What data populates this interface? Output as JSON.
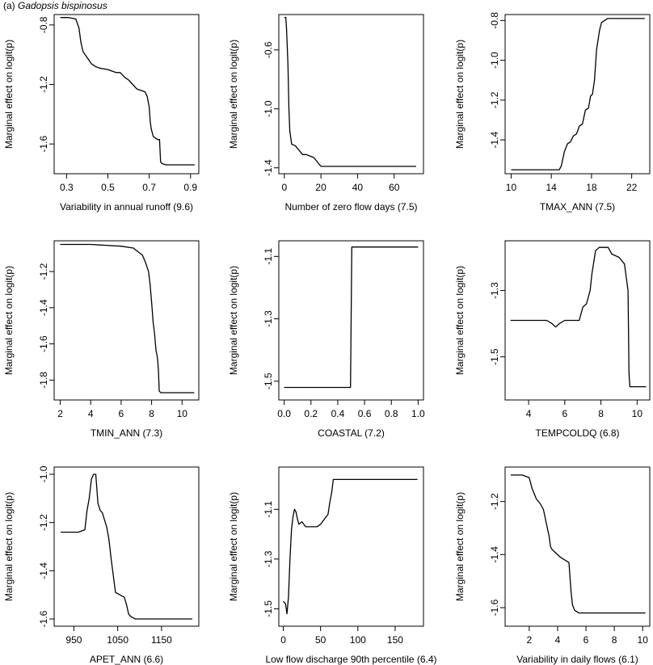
{
  "figure": {
    "panel_label": "(a)",
    "species": "Gadopsis bispinosus"
  },
  "chart_data": [
    {
      "type": "line",
      "xlabel": "Variability in annual runoff (9.6)",
      "ylabel": "Marginal effect on logit(p)",
      "xlim": [
        0.24,
        0.94
      ],
      "ylim": [
        -1.8,
        -0.73
      ],
      "xticks": [
        "0.3",
        "0.5",
        "0.7",
        "0.9"
      ],
      "yticks": [
        "-1.6",
        "-1.2",
        "-0.8"
      ],
      "x": [
        0.27,
        0.31,
        0.345,
        0.36,
        0.37,
        0.38,
        0.39,
        0.4,
        0.42,
        0.44,
        0.46,
        0.5,
        0.52,
        0.54,
        0.56,
        0.58,
        0.6,
        0.62,
        0.64,
        0.66,
        0.68,
        0.69,
        0.7,
        0.705,
        0.71,
        0.72,
        0.73,
        0.74,
        0.75,
        0.755,
        0.76,
        0.78,
        0.8,
        0.92
      ],
      "y": [
        -0.75,
        -0.75,
        -0.76,
        -0.82,
        -0.92,
        -0.98,
        -1.0,
        -1.02,
        -1.06,
        -1.08,
        -1.09,
        -1.1,
        -1.11,
        -1.12,
        -1.12,
        -1.15,
        -1.17,
        -1.2,
        -1.23,
        -1.24,
        -1.25,
        -1.28,
        -1.35,
        -1.45,
        -1.5,
        -1.55,
        -1.56,
        -1.57,
        -1.57,
        -1.72,
        -1.73,
        -1.74,
        -1.74,
        -1.74
      ]
    },
    {
      "type": "line",
      "xlabel": "Number of zero flow days (7.5)",
      "ylabel": "Marginal effect on logit(p)",
      "xlim": [
        -3,
        76
      ],
      "ylim": [
        -1.44,
        -0.36
      ],
      "xticks": [
        "0",
        "20",
        "40",
        "60"
      ],
      "yticks": [
        "-1.4",
        "-1.0",
        "-0.6"
      ],
      "x": [
        0,
        0.8,
        1.2,
        2,
        2.5,
        3,
        4,
        6,
        8,
        10,
        12,
        14,
        16,
        18,
        20,
        25,
        30,
        40,
        50,
        60,
        72
      ],
      "y": [
        -0.38,
        -0.38,
        -0.45,
        -0.7,
        -1.0,
        -1.15,
        -1.24,
        -1.25,
        -1.28,
        -1.31,
        -1.31,
        -1.32,
        -1.33,
        -1.36,
        -1.39,
        -1.39,
        -1.39,
        -1.39,
        -1.39,
        -1.39,
        -1.39
      ]
    },
    {
      "type": "line",
      "xlabel": "TMAX_ANN (7.5)",
      "ylabel": "Marginal effect on logit(p)",
      "xlim": [
        9.4,
        23.8
      ],
      "ylim": [
        -1.57,
        -0.77
      ],
      "xticks": [
        "10",
        "14",
        "18",
        "22"
      ],
      "yticks": [
        "-1.4",
        "-1.2",
        "-1.0",
        "-0.8"
      ],
      "x": [
        10,
        12,
        14,
        14.8,
        15.0,
        15.3,
        15.6,
        15.9,
        16.2,
        16.5,
        16.8,
        17.1,
        17.4,
        17.7,
        17.9,
        18.1,
        18.3,
        18.5,
        18.8,
        19.0,
        19.3,
        19.6,
        20,
        22,
        23.3
      ],
      "y": [
        -1.55,
        -1.55,
        -1.55,
        -1.55,
        -1.53,
        -1.46,
        -1.42,
        -1.41,
        -1.38,
        -1.37,
        -1.33,
        -1.32,
        -1.25,
        -1.24,
        -1.18,
        -1.17,
        -1.1,
        -0.95,
        -0.85,
        -0.81,
        -0.8,
        -0.79,
        -0.79,
        -0.79,
        -0.79
      ]
    },
    {
      "type": "line",
      "xlabel": "TMIN_ANN (7.3)",
      "ylabel": "Marginal effect on logit(p)",
      "xlim": [
        1.6,
        11.1
      ],
      "ylim": [
        -1.91,
        -1.03
      ],
      "xticks": [
        "2",
        "4",
        "6",
        "8",
        "10"
      ],
      "yticks": [
        "-1.8",
        "-1.6",
        "-1.4",
        "-1.2"
      ],
      "x": [
        2,
        4,
        6,
        6.8,
        7.1,
        7.4,
        7.6,
        7.8,
        7.9,
        8.0,
        8.1,
        8.2,
        8.25,
        8.3,
        8.35,
        8.4,
        8.45,
        8.5,
        8.6,
        9,
        10,
        10.8
      ],
      "y": [
        -1.05,
        -1.05,
        -1.06,
        -1.07,
        -1.09,
        -1.11,
        -1.15,
        -1.2,
        -1.27,
        -1.37,
        -1.48,
        -1.55,
        -1.6,
        -1.64,
        -1.66,
        -1.69,
        -1.75,
        -1.86,
        -1.87,
        -1.87,
        -1.87,
        -1.87
      ]
    },
    {
      "type": "line",
      "xlabel": "COASTAL (7.2)",
      "ylabel": "Marginal effect on logit(p)",
      "xlim": [
        -0.04,
        1.04
      ],
      "ylim": [
        -1.56,
        -1.05
      ],
      "xticks": [
        "0.0",
        "0.2",
        "0.4",
        "0.6",
        "0.8",
        "1.0"
      ],
      "yticks": [
        "-1.5",
        "-1.3",
        "-1.1"
      ],
      "x": [
        0.0,
        0.495,
        0.505,
        1.0
      ],
      "y": [
        -1.52,
        -1.52,
        -1.07,
        -1.07
      ]
    },
    {
      "type": "line",
      "xlabel": "TEMPCOLDQ (6.8)",
      "ylabel": "Marginal effect on logit(p)",
      "xlim": [
        2.7,
        10.7
      ],
      "ylim": [
        -1.63,
        -1.15
      ],
      "xticks": [
        "4",
        "6",
        "8",
        "10"
      ],
      "yticks": [
        "-1.5",
        "-1.3"
      ],
      "x": [
        3,
        4,
        5,
        5.3,
        5.5,
        5.7,
        6.0,
        6.5,
        6.8,
        7.0,
        7.2,
        7.4,
        7.5,
        7.7,
        7.9,
        8.2,
        8.4,
        8.6,
        9.0,
        9.3,
        9.5,
        9.55,
        9.6,
        10.5
      ],
      "y": [
        -1.39,
        -1.39,
        -1.39,
        -1.4,
        -1.41,
        -1.4,
        -1.39,
        -1.39,
        -1.39,
        -1.35,
        -1.34,
        -1.3,
        -1.25,
        -1.18,
        -1.17,
        -1.17,
        -1.17,
        -1.19,
        -1.2,
        -1.22,
        -1.3,
        -1.55,
        -1.59,
        -1.59
      ]
    },
    {
      "type": "line",
      "xlabel": "APET_ANN (6.6)",
      "ylabel": "Marginal effect on logit(p)",
      "xlim": [
        905,
        1235
      ],
      "ylim": [
        -1.63,
        -0.97
      ],
      "xticks": [
        "950",
        "1050",
        "1150"
      ],
      "yticks": [
        "-1.6",
        "-1.4",
        "-1.2",
        "-1.0"
      ],
      "x": [
        920,
        960,
        975,
        980,
        985,
        990,
        995,
        1000,
        1005,
        1010,
        1015,
        1025,
        1030,
        1035,
        1040,
        1045,
        1055,
        1065,
        1070,
        1075,
        1080,
        1090,
        1100,
        1150,
        1220
      ],
      "y": [
        -1.24,
        -1.24,
        -1.23,
        -1.15,
        -1.1,
        -1.02,
        -1.0,
        -1.0,
        -1.12,
        -1.15,
        -1.16,
        -1.22,
        -1.27,
        -1.35,
        -1.42,
        -1.49,
        -1.5,
        -1.51,
        -1.54,
        -1.58,
        -1.59,
        -1.6,
        -1.6,
        -1.6,
        -1.6
      ]
    },
    {
      "type": "line",
      "xlabel": "Low flow discharge 90th percentile (6.4)",
      "ylabel": "Marginal effect on logit(p)",
      "xlim": [
        -6,
        188
      ],
      "ylim": [
        -1.57,
        -0.93
      ],
      "xticks": [
        "0",
        "50",
        "100",
        "150"
      ],
      "yticks": [
        "-1.5",
        "-1.3",
        "-1.1"
      ],
      "x": [
        0,
        3,
        5,
        7,
        9,
        11,
        13,
        15,
        17,
        19,
        21,
        25,
        30,
        35,
        40,
        45,
        50,
        55,
        60,
        62,
        65,
        67,
        70,
        100,
        180
      ],
      "y": [
        -1.47,
        -1.48,
        -1.52,
        -1.45,
        -1.3,
        -1.18,
        -1.13,
        -1.1,
        -1.11,
        -1.14,
        -1.16,
        -1.15,
        -1.17,
        -1.17,
        -1.17,
        -1.17,
        -1.16,
        -1.14,
        -1.12,
        -1.08,
        -1.03,
        -0.98,
        -0.98,
        -0.98,
        -0.98
      ]
    },
    {
      "type": "line",
      "xlabel": "Variability in daily flows (6.1)",
      "ylabel": "Marginal effect on logit(p)",
      "xlim": [
        0.3,
        10.5
      ],
      "ylim": [
        -1.67,
        -1.07
      ],
      "xticks": [
        "2",
        "4",
        "6",
        "8",
        "10"
      ],
      "yticks": [
        "-1.6",
        "-1.4",
        "-1.2"
      ],
      "x": [
        0.7,
        1.5,
        2.0,
        2.2,
        2.5,
        2.8,
        3.0,
        3.2,
        3.4,
        3.5,
        3.6,
        3.8,
        4.0,
        4.2,
        4.5,
        4.8,
        4.95,
        5.05,
        5.2,
        5.5,
        6,
        8,
        10.2
      ],
      "y": [
        -1.1,
        -1.1,
        -1.11,
        -1.15,
        -1.19,
        -1.21,
        -1.23,
        -1.28,
        -1.33,
        -1.37,
        -1.38,
        -1.39,
        -1.4,
        -1.41,
        -1.42,
        -1.43,
        -1.54,
        -1.59,
        -1.61,
        -1.62,
        -1.62,
        -1.62,
        -1.62
      ]
    }
  ]
}
